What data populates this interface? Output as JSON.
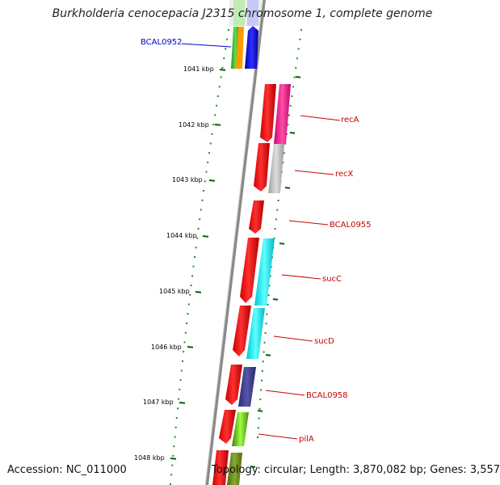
{
  "title": "Burkholderia cenocepacia J2315 chromosome 1, complete genome",
  "footer": {
    "accession": "Accession: NC_011000",
    "summary": "Topology: circular; Length: 3,870,082 bp; Genes: 3,557"
  },
  "scale_labels": [
    "1041 kbp",
    "1042 kbp",
    "1043 kbp",
    "1044 kbp",
    "1045 kbp",
    "1046 kbp",
    "1047 kbp",
    "1048 kbp"
  ],
  "genes": [
    {
      "name": "BCAL0952",
      "color": "#0000cc"
    },
    {
      "name": "recA",
      "color": "#cc0000"
    },
    {
      "name": "recX",
      "color": "#cc0000"
    },
    {
      "name": "BCAL0955",
      "color": "#cc0000"
    },
    {
      "name": "sucC",
      "color": "#cc0000"
    },
    {
      "name": "sucD",
      "color": "#cc0000"
    },
    {
      "name": "BCAL0958",
      "color": "#cc0000"
    },
    {
      "name": "pilA",
      "color": "#cc0000"
    }
  ],
  "colors": {
    "cds": "#ff0000",
    "backbone": "#777777",
    "gc_dots": "#228b22",
    "tick": "#006400",
    "cog_magenta": "#ff1493",
    "cog_gray": "#c0c0c0",
    "cog_cyan": "#00ffff",
    "cog_navy": "#3b3b8f",
    "cog_green": "#7cfc00",
    "cog_blue": "#0000ff",
    "cog_orange": "#ff9900"
  }
}
